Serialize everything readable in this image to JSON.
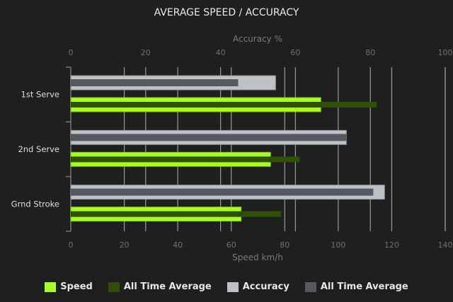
{
  "chart_data": {
    "type": "bar",
    "orientation": "horizontal",
    "title": "AVERAGE SPEED / ACCURACY",
    "categories": [
      "1st Serve",
      "2nd Serve",
      "Grnd Stroke"
    ],
    "top_axis": {
      "label": "Accuracy %",
      "range": [
        0,
        100
      ],
      "ticks": [
        0,
        20,
        40,
        60,
        80,
        100
      ]
    },
    "bottom_axis": {
      "label": "Speed km/h",
      "range": [
        0,
        140
      ],
      "ticks": [
        0,
        20,
        40,
        60,
        80,
        100,
        120,
        140
      ]
    },
    "grid": true,
    "legend_position": "bottom",
    "series": [
      {
        "name": "Speed",
        "axis": "speed",
        "color": "#a6ff1e",
        "values": [
          93.5,
          74.7,
          63.7
        ]
      },
      {
        "name": "All Time Average",
        "axis": "speed",
        "color": "#2f4f05",
        "values": [
          114.4,
          85.6,
          78.7
        ]
      },
      {
        "name": "Accuracy",
        "axis": "accuracy",
        "color": "#bfc2c4",
        "values": [
          54.7,
          73.6,
          83.8
        ]
      },
      {
        "name": "All Time Average",
        "axis": "accuracy",
        "color": "#555a61",
        "values": [
          44.7,
          73.6,
          80.8
        ]
      }
    ]
  }
}
